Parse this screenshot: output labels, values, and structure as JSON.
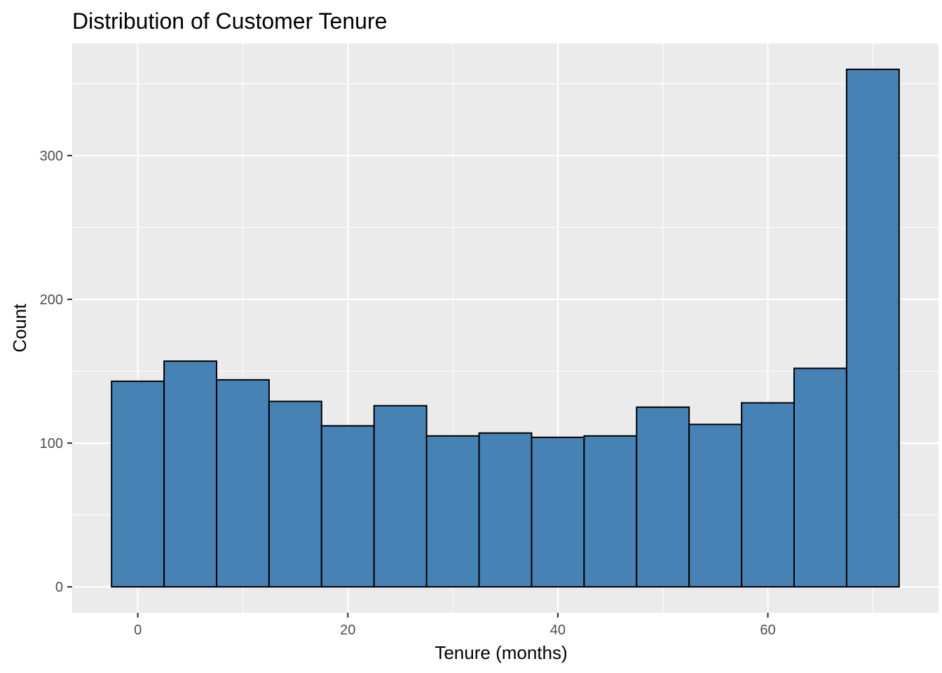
{
  "chart_data": {
    "type": "bar",
    "title": "Distribution of Customer Tenure",
    "xlabel": "Tenure (months)",
    "ylabel": "Count",
    "bin_width": 5,
    "bins": [
      {
        "center": 0,
        "count": 143
      },
      {
        "center": 5,
        "count": 157
      },
      {
        "center": 10,
        "count": 144
      },
      {
        "center": 15,
        "count": 129
      },
      {
        "center": 20,
        "count": 112
      },
      {
        "center": 25,
        "count": 126
      },
      {
        "center": 30,
        "count": 105
      },
      {
        "center": 35,
        "count": 107
      },
      {
        "center": 40,
        "count": 104
      },
      {
        "center": 45,
        "count": 105
      },
      {
        "center": 50,
        "count": 125
      },
      {
        "center": 55,
        "count": 113
      },
      {
        "center": 60,
        "count": 128
      },
      {
        "center": 65,
        "count": 152
      },
      {
        "center": 70,
        "count": 360
      }
    ],
    "xlim": [
      -6.25,
      76.25
    ],
    "ylim": [
      -18,
      378
    ],
    "x_ticks": [
      0,
      20,
      40,
      60
    ],
    "x_tick_labels": [
      "0",
      "20",
      "40",
      "60"
    ],
    "x_minor": [
      10,
      30,
      50,
      70
    ],
    "y_ticks": [
      0,
      100,
      200,
      300
    ],
    "y_tick_labels": [
      "0",
      "100",
      "200",
      "300"
    ],
    "y_minor": [
      50,
      150,
      250,
      350
    ],
    "grid": true,
    "bar_fill": "#4682b4",
    "bar_edge": "#000000",
    "panel_background": "#ebebeb",
    "grid_color": "#ffffff"
  }
}
